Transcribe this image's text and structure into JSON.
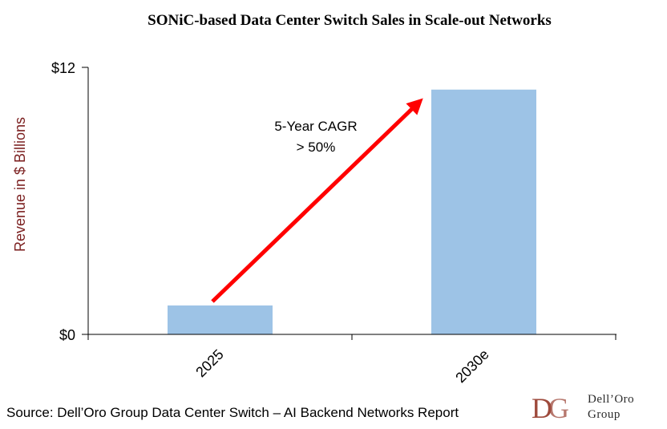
{
  "chart_data": {
    "type": "bar",
    "title": "SONiC-based Data Center Switch Sales in Scale-out Networks",
    "categories": [
      "2025",
      "2030e"
    ],
    "values": [
      1.3,
      11.0
    ],
    "ylim": [
      0,
      12
    ],
    "yticks": [
      "$0",
      "$12"
    ],
    "ytick_values": [
      0,
      12
    ],
    "ylabel": "Revenue in $ Billions",
    "xlabel": "",
    "bar_color": "#9dc3e6",
    "arrow_color": "#ff0000",
    "annotation": [
      "5-Year CAGR",
      "> 50%"
    ]
  },
  "source": "Source: Dell’Oro Group Data Center Switch – AI Backend Networks Report",
  "logo": {
    "line1": "Dell’Oro",
    "line2": "Group",
    "color": "#9e4a3c"
  }
}
